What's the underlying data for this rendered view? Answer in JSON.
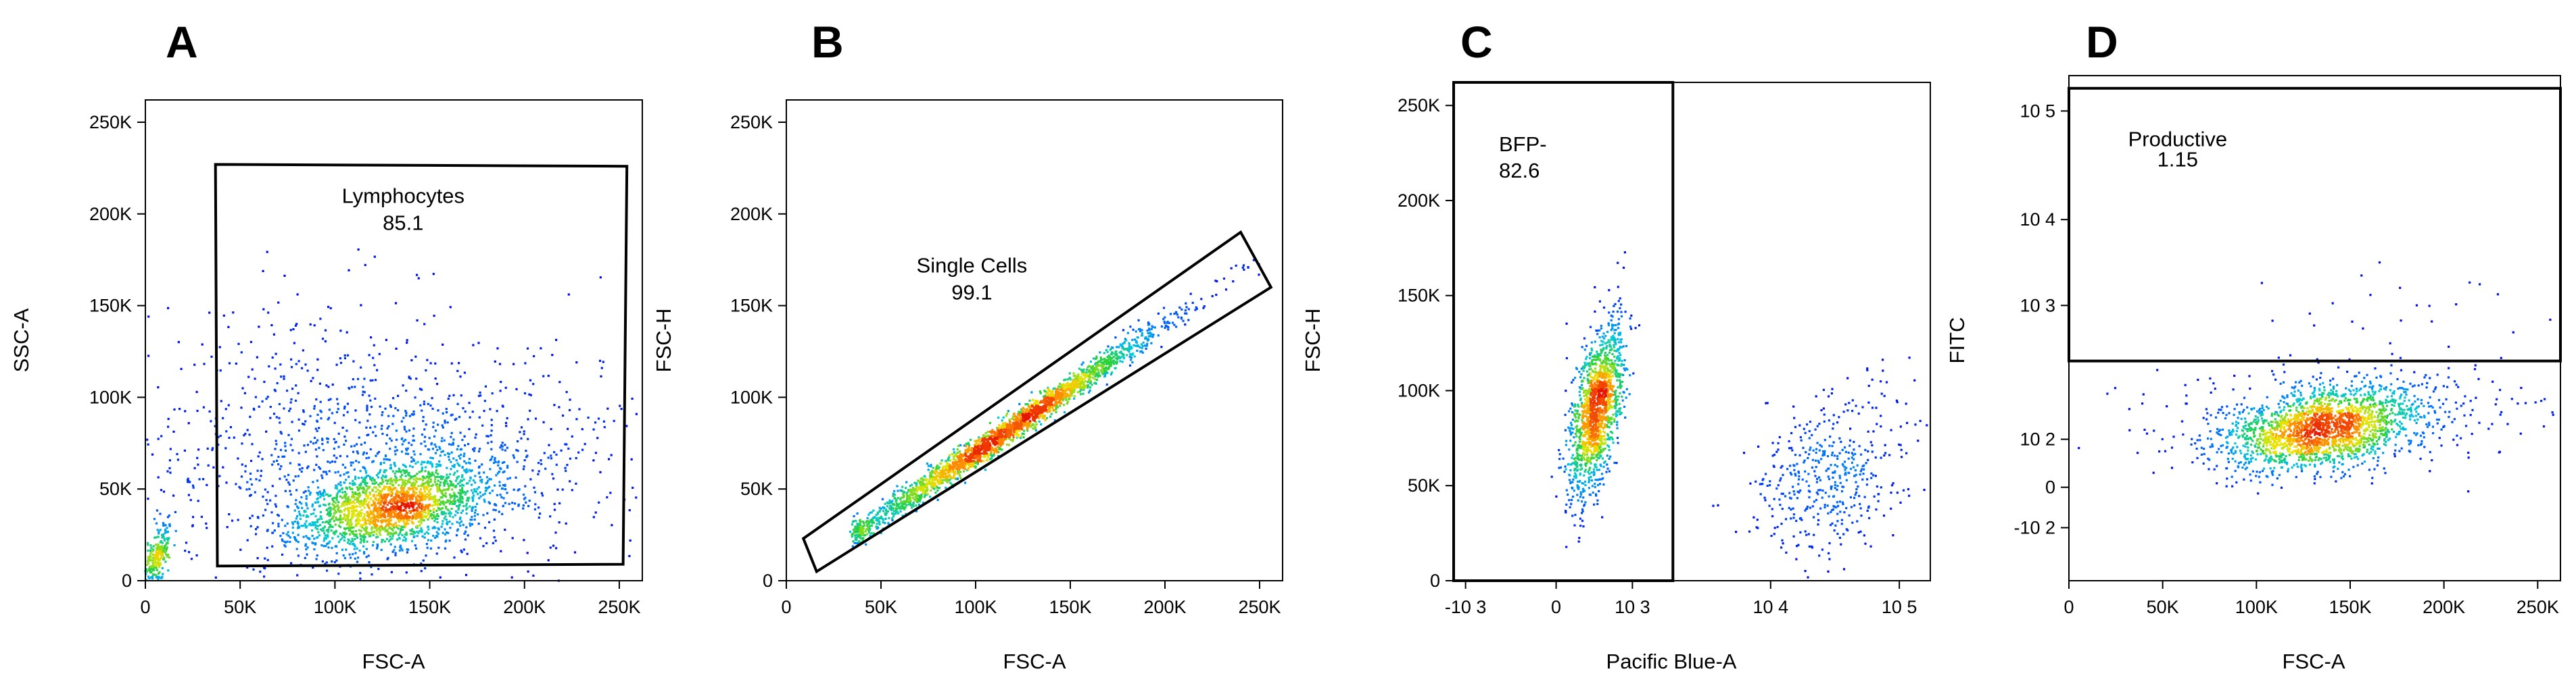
{
  "chart_data": [
    {
      "type": "scatter",
      "panel_label": "A",
      "xlabel": "FSC-A",
      "ylabel": "SSC-A",
      "xlim": [
        0,
        262144
      ],
      "ylim": [
        0,
        262144
      ],
      "x_ticks": [
        {
          "v": 0,
          "t": "0"
        },
        {
          "v": 50000,
          "t": "50K"
        },
        {
          "v": 100000,
          "t": "100K"
        },
        {
          "v": 150000,
          "t": "150K"
        },
        {
          "v": 200000,
          "t": "200K"
        },
        {
          "v": 250000,
          "t": "250K"
        }
      ],
      "y_ticks": [
        {
          "v": 0,
          "t": "0"
        },
        {
          "v": 50000,
          "t": "50K"
        },
        {
          "v": 100000,
          "t": "100K"
        },
        {
          "v": 150000,
          "t": "150K"
        },
        {
          "v": 200000,
          "t": "200K"
        },
        {
          "v": 250000,
          "t": "250K"
        }
      ],
      "gate": {
        "name": "Lymphocytes",
        "value": "85.1",
        "polygon": [
          [
            37000,
            227000
          ],
          [
            254000,
            226000
          ],
          [
            252000,
            9000
          ],
          [
            38000,
            8000
          ]
        ],
        "label_at": [
          136000,
          206000
        ]
      },
      "clusters": [
        {
          "cx": 130000,
          "cy": 40000,
          "sx": 25000,
          "sy": 12000,
          "rho": 0.45,
          "n": 1900,
          "seed": 11
        },
        {
          "cx": 130000,
          "cy": 62000,
          "sx": 65000,
          "sy": 30000,
          "rho": 0.15,
          "n": 1100,
          "seed": 12
        },
        {
          "cx": 6000,
          "cy": 12000,
          "sx": 4000,
          "sy": 10000,
          "rho": 0.7,
          "n": 260,
          "seed": 13
        },
        {
          "cx": 90000,
          "cy": 120000,
          "sx": 45000,
          "sy": 28000,
          "rho": 0.1,
          "n": 140,
          "seed": 14
        }
      ]
    },
    {
      "type": "scatter",
      "panel_label": "B",
      "xlabel": "FSC-A",
      "ylabel": "FSC-H",
      "xlim": [
        0,
        262144
      ],
      "ylim": [
        0,
        262144
      ],
      "x_ticks": [
        {
          "v": 0,
          "t": "0"
        },
        {
          "v": 50000,
          "t": "50K"
        },
        {
          "v": 100000,
          "t": "100K"
        },
        {
          "v": 150000,
          "t": "150K"
        },
        {
          "v": 200000,
          "t": "200K"
        },
        {
          "v": 250000,
          "t": "250K"
        }
      ],
      "y_ticks": [
        {
          "v": 0,
          "t": "0"
        },
        {
          "v": 50000,
          "t": "50K"
        },
        {
          "v": 100000,
          "t": "100K"
        },
        {
          "v": 150000,
          "t": "150K"
        },
        {
          "v": 200000,
          "t": "200K"
        },
        {
          "v": 250000,
          "t": "250K"
        }
      ],
      "gate": {
        "name": "Single Cells",
        "value": "99.1",
        "polygon": [
          [
            9000,
            23000
          ],
          [
            240000,
            190000
          ],
          [
            256000,
            160000
          ],
          [
            16000,
            5000
          ]
        ],
        "label_at": [
          98000,
          168000
        ]
      },
      "clusters": [
        {
          "line": true,
          "x0": 38000,
          "x1": 250000,
          "slope": 0.7,
          "icpt": 0,
          "tmode": 115000,
          "tsd": 42000,
          "sperp": 3500,
          "n": 2600,
          "seed": 21
        }
      ]
    },
    {
      "type": "scatter",
      "panel_label": "C",
      "xlabel": "Pacific Blue-A",
      "ylabel": "FSC-H",
      "xlim": [
        0,
        1
      ],
      "ylim": [
        0,
        262144
      ],
      "x_ticks": [
        {
          "v": 0.025,
          "t": "-10 3"
        },
        {
          "v": 0.215,
          "t": "0"
        },
        {
          "v": 0.375,
          "t": "10 3"
        },
        {
          "v": 0.665,
          "t": "10 4"
        },
        {
          "v": 0.935,
          "t": "10 5"
        }
      ],
      "y_ticks": [
        {
          "v": 0,
          "t": "0"
        },
        {
          "v": 50000,
          "t": "50K"
        },
        {
          "v": 100000,
          "t": "100K"
        },
        {
          "v": 150000,
          "t": "150K"
        },
        {
          "v": 200000,
          "t": "200K"
        },
        {
          "v": 250000,
          "t": "250K"
        }
      ],
      "gate": {
        "name": "BFP-",
        "value": "82.6",
        "polygon": [
          [
            0,
            262144
          ],
          [
            0.46,
            262144
          ],
          [
            0.46,
            0
          ],
          [
            0,
            0
          ]
        ],
        "label_at": [
          0.095,
          226000
        ],
        "value_at": [
          0.095,
          212000
        ],
        "align": "start"
      },
      "clusters": [
        {
          "cx": 0.3,
          "cy": 90000,
          "sx": 0.028,
          "sy": 22000,
          "rho": 0.55,
          "n": 1500,
          "seed": 31
        },
        {
          "cx": 0.78,
          "cy": 55000,
          "sx": 0.085,
          "sy": 22000,
          "rho": 0.25,
          "n": 450,
          "seed": 32
        }
      ]
    },
    {
      "type": "scatter",
      "panel_label": "D",
      "xlabel": "FSC-A",
      "ylabel": "FITC",
      "xlim": [
        0,
        262144
      ],
      "ylim": [
        0,
        1
      ],
      "x_ticks": [
        {
          "v": 0,
          "t": "0"
        },
        {
          "v": 50000,
          "t": "50K"
        },
        {
          "v": 100000,
          "t": "100K"
        },
        {
          "v": 150000,
          "t": "150K"
        },
        {
          "v": 200000,
          "t": "200K"
        },
        {
          "v": 250000,
          "t": "250K"
        }
      ],
      "y_ticks": [
        {
          "v": 0.105,
          "t": "-10 2"
        },
        {
          "v": 0.185,
          "t": "0"
        },
        {
          "v": 0.28,
          "t": "10 2"
        },
        {
          "v": 0.545,
          "t": "10 3"
        },
        {
          "v": 0.715,
          "t": "10 4"
        },
        {
          "v": 0.93,
          "t": "10 5"
        }
      ],
      "gate": {
        "name": "Productive",
        "value": "1.15",
        "polygon": [
          [
            0,
            0.975
          ],
          [
            262144,
            0.975
          ],
          [
            262144,
            0.435
          ],
          [
            0,
            0.435
          ]
        ],
        "label_at": [
          58000,
          0.86
        ],
        "value_at": [
          58000,
          0.82
        ],
        "align": "middle"
      },
      "clusters": [
        {
          "cx": 135000,
          "cy": 0.3,
          "sx": 26000,
          "sy": 0.04,
          "rho": 0.35,
          "n": 1900,
          "seed": 41
        },
        {
          "cx": 150000,
          "cy": 0.33,
          "sx": 55000,
          "sy": 0.06,
          "rho": 0.1,
          "n": 350,
          "seed": 42
        },
        {
          "cx": 160000,
          "cy": 0.55,
          "sx": 45000,
          "sy": 0.06,
          "rho": 0.0,
          "n": 22,
          "seed": 43
        }
      ]
    }
  ]
}
